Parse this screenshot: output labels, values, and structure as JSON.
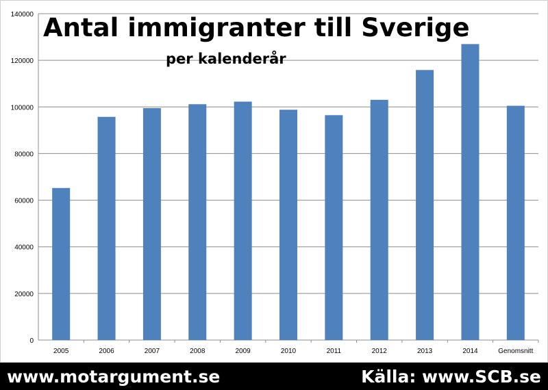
{
  "chart_data": {
    "type": "bar",
    "title": "Antal immigranter till Sverige",
    "subtitle": "per kalenderår",
    "categories": [
      "2005",
      "2006",
      "2007",
      "2008",
      "2009",
      "2010",
      "2011",
      "2012",
      "2013",
      "2014",
      "Genomsnitt"
    ],
    "values": [
      65229,
      95750,
      99485,
      101171,
      102280,
      98801,
      96467,
      103059,
      115845,
      126966,
      100505
    ],
    "ylim": [
      0,
      140000
    ],
    "yticks": [
      "0",
      "20000",
      "40000",
      "60000",
      "80000",
      "100000",
      "120000",
      "140000"
    ],
    "xlabel": "",
    "ylabel": "",
    "grid": true,
    "bar_color": "#4f81bd"
  },
  "footer": {
    "left": "www.motargument.se",
    "right": "Källa: www.SCB.se"
  }
}
